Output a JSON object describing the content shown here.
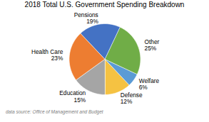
{
  "chart_data": {
    "type": "pie",
    "title": "2018 Total U.S. Government Spending Breakdown",
    "categories": [
      "Defense",
      "Welfare",
      "Other",
      "Pensions",
      "Health Care",
      "Education"
    ],
    "values": [
      12,
      6,
      25,
      19,
      23,
      15
    ],
    "value_labels": [
      "12%",
      "6%",
      "25%",
      "19%",
      "23%",
      "15%"
    ],
    "colors": [
      "#F5C242",
      "#5B9BD5",
      "#70AD47",
      "#4472C4",
      "#ED7D31",
      "#A5A5A5"
    ],
    "data_labels": true,
    "annotations": [
      "data source: Office of Management and Budget"
    ]
  }
}
